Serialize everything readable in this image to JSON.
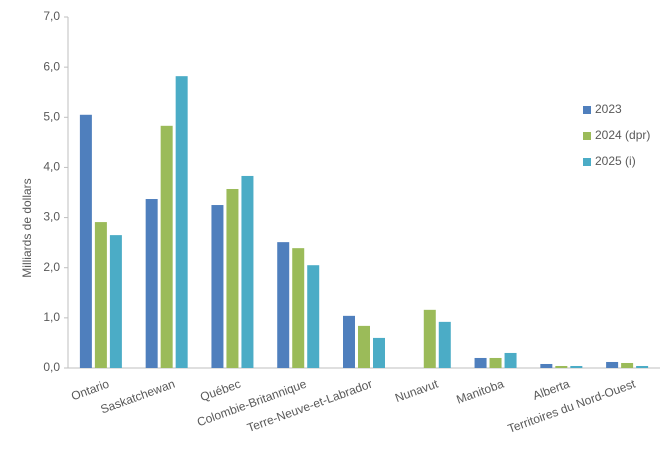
{
  "chart_data": {
    "type": "bar",
    "y_label": "Milliards de dollars",
    "categories": [
      "Ontario",
      "Saskatchewan",
      "Québec",
      "Colombie-Britannique",
      "Terre-Neuve-et-Labrador",
      "Nunavut",
      "Manitoba",
      "Alberta",
      "Territoires du Nord-Ouest"
    ],
    "series": [
      {
        "name": "2023",
        "color": "#4f7fbd",
        "values": [
          5.05,
          3.37,
          3.25,
          2.51,
          1.04,
          null,
          0.2,
          0.08,
          0.12
        ]
      },
      {
        "name": "2024 (dpr)",
        "color": "#9bbb59",
        "values": [
          2.91,
          4.83,
          3.57,
          2.39,
          0.84,
          1.16,
          0.2,
          0.04,
          0.1
        ]
      },
      {
        "name": "2025 (i)",
        "color": "#4bacc6",
        "values": [
          2.65,
          5.82,
          3.83,
          2.05,
          0.6,
          0.92,
          0.3,
          0.04,
          0.04
        ]
      }
    ],
    "ylim": [
      0,
      7
    ],
    "yticks": [
      {
        "value": 0,
        "label": "0,0"
      },
      {
        "value": 1,
        "label": "1,0"
      },
      {
        "value": 2,
        "label": "2,0"
      },
      {
        "value": 3,
        "label": "3,0"
      },
      {
        "value": 4,
        "label": "4,0"
      },
      {
        "value": 5,
        "label": "5,0"
      },
      {
        "value": 6,
        "label": "6,0"
      },
      {
        "value": 7,
        "label": "7,0"
      }
    ],
    "grid": false,
    "legend": "right"
  }
}
